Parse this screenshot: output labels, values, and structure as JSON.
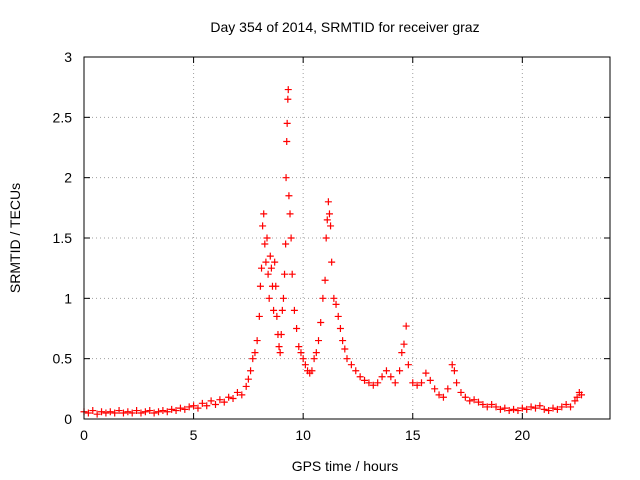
{
  "chart_data": {
    "type": "scatter",
    "title": "Day 354 of 2014, SRMTID for receiver graz",
    "xlabel": "GPS time / hours",
    "ylabel": "SRMTID / TECUs",
    "xlim": [
      0,
      24
    ],
    "ylim": [
      0,
      3
    ],
    "xticks": [
      0,
      5,
      10,
      15,
      20
    ],
    "yticks": [
      0,
      0.5,
      1,
      1.5,
      2,
      2.5,
      3
    ],
    "ytick_labels": [
      "0",
      "0.5",
      "1",
      "1.5",
      "2",
      "2.5",
      "3"
    ],
    "grid": true,
    "marker": "+",
    "series": [
      {
        "name": "SRMTID",
        "color": "#ff0000",
        "points": [
          [
            0.0,
            0.06
          ],
          [
            0.2,
            0.05
          ],
          [
            0.4,
            0.07
          ],
          [
            0.6,
            0.04
          ],
          [
            0.8,
            0.06
          ],
          [
            1.0,
            0.05
          ],
          [
            1.2,
            0.06
          ],
          [
            1.4,
            0.05
          ],
          [
            1.6,
            0.07
          ],
          [
            1.8,
            0.05
          ],
          [
            2.0,
            0.06
          ],
          [
            2.2,
            0.05
          ],
          [
            2.4,
            0.07
          ],
          [
            2.6,
            0.05
          ],
          [
            2.8,
            0.06
          ],
          [
            3.0,
            0.07
          ],
          [
            3.2,
            0.05
          ],
          [
            3.4,
            0.06
          ],
          [
            3.6,
            0.07
          ],
          [
            3.8,
            0.06
          ],
          [
            4.0,
            0.08
          ],
          [
            4.2,
            0.07
          ],
          [
            4.4,
            0.09
          ],
          [
            4.6,
            0.08
          ],
          [
            4.8,
            0.1
          ],
          [
            5.0,
            0.11
          ],
          [
            5.2,
            0.09
          ],
          [
            5.4,
            0.13
          ],
          [
            5.6,
            0.11
          ],
          [
            5.8,
            0.15
          ],
          [
            6.0,
            0.12
          ],
          [
            6.2,
            0.16
          ],
          [
            6.4,
            0.14
          ],
          [
            6.6,
            0.18
          ],
          [
            6.8,
            0.17
          ],
          [
            7.0,
            0.22
          ],
          [
            7.2,
            0.2
          ],
          [
            7.4,
            0.27
          ],
          [
            7.5,
            0.33
          ],
          [
            7.6,
            0.4
          ],
          [
            7.7,
            0.5
          ],
          [
            7.8,
            0.55
          ],
          [
            7.9,
            0.65
          ],
          [
            8.0,
            0.85
          ],
          [
            8.05,
            1.1
          ],
          [
            8.1,
            1.25
          ],
          [
            8.15,
            1.6
          ],
          [
            8.2,
            1.7
          ],
          [
            8.25,
            1.45
          ],
          [
            8.3,
            1.3
          ],
          [
            8.35,
            1.5
          ],
          [
            8.4,
            1.2
          ],
          [
            8.45,
            1.0
          ],
          [
            8.5,
            1.35
          ],
          [
            8.55,
            1.25
          ],
          [
            8.6,
            1.1
          ],
          [
            8.65,
            0.9
          ],
          [
            8.7,
            1.3
          ],
          [
            8.75,
            1.1
          ],
          [
            8.8,
            0.85
          ],
          [
            8.85,
            0.7
          ],
          [
            8.9,
            0.6
          ],
          [
            8.95,
            0.55
          ],
          [
            9.0,
            0.7
          ],
          [
            9.05,
            0.9
          ],
          [
            9.1,
            1.0
          ],
          [
            9.15,
            1.2
          ],
          [
            9.2,
            1.45
          ],
          [
            9.22,
            2.0
          ],
          [
            9.25,
            2.3
          ],
          [
            9.27,
            2.45
          ],
          [
            9.3,
            2.65
          ],
          [
            9.32,
            2.73
          ],
          [
            9.35,
            1.85
          ],
          [
            9.4,
            1.7
          ],
          [
            9.45,
            1.5
          ],
          [
            9.5,
            1.2
          ],
          [
            9.6,
            0.9
          ],
          [
            9.7,
            0.75
          ],
          [
            9.8,
            0.6
          ],
          [
            9.9,
            0.55
          ],
          [
            10.0,
            0.5
          ],
          [
            10.1,
            0.45
          ],
          [
            10.2,
            0.4
          ],
          [
            10.3,
            0.38
          ],
          [
            10.4,
            0.4
          ],
          [
            10.5,
            0.5
          ],
          [
            10.6,
            0.55
          ],
          [
            10.7,
            0.65
          ],
          [
            10.8,
            0.8
          ],
          [
            10.9,
            1.0
          ],
          [
            11.0,
            1.15
          ],
          [
            11.05,
            1.5
          ],
          [
            11.1,
            1.65
          ],
          [
            11.15,
            1.8
          ],
          [
            11.2,
            1.7
          ],
          [
            11.25,
            1.6
          ],
          [
            11.3,
            1.3
          ],
          [
            11.4,
            1.0
          ],
          [
            11.5,
            0.95
          ],
          [
            11.6,
            0.85
          ],
          [
            11.7,
            0.75
          ],
          [
            11.8,
            0.65
          ],
          [
            11.9,
            0.58
          ],
          [
            12.0,
            0.5
          ],
          [
            12.2,
            0.45
          ],
          [
            12.4,
            0.4
          ],
          [
            12.6,
            0.35
          ],
          [
            12.8,
            0.32
          ],
          [
            13.0,
            0.3
          ],
          [
            13.2,
            0.28
          ],
          [
            13.4,
            0.3
          ],
          [
            13.6,
            0.35
          ],
          [
            13.8,
            0.4
          ],
          [
            14.0,
            0.35
          ],
          [
            14.2,
            0.3
          ],
          [
            14.4,
            0.4
          ],
          [
            14.5,
            0.55
          ],
          [
            14.6,
            0.62
          ],
          [
            14.7,
            0.77
          ],
          [
            14.8,
            0.45
          ],
          [
            15.0,
            0.3
          ],
          [
            15.2,
            0.28
          ],
          [
            15.4,
            0.3
          ],
          [
            15.6,
            0.38
          ],
          [
            15.8,
            0.32
          ],
          [
            16.0,
            0.25
          ],
          [
            16.2,
            0.2
          ],
          [
            16.4,
            0.18
          ],
          [
            16.6,
            0.25
          ],
          [
            16.8,
            0.45
          ],
          [
            16.9,
            0.4
          ],
          [
            17.0,
            0.3
          ],
          [
            17.2,
            0.22
          ],
          [
            17.4,
            0.18
          ],
          [
            17.6,
            0.15
          ],
          [
            17.8,
            0.16
          ],
          [
            18.0,
            0.14
          ],
          [
            18.2,
            0.12
          ],
          [
            18.4,
            0.1
          ],
          [
            18.6,
            0.12
          ],
          [
            18.8,
            0.1
          ],
          [
            19.0,
            0.08
          ],
          [
            19.2,
            0.09
          ],
          [
            19.4,
            0.07
          ],
          [
            19.6,
            0.08
          ],
          [
            19.8,
            0.07
          ],
          [
            20.0,
            0.09
          ],
          [
            20.2,
            0.08
          ],
          [
            20.4,
            0.1
          ],
          [
            20.6,
            0.09
          ],
          [
            20.8,
            0.11
          ],
          [
            21.0,
            0.08
          ],
          [
            21.2,
            0.07
          ],
          [
            21.4,
            0.09
          ],
          [
            21.6,
            0.08
          ],
          [
            21.8,
            0.1
          ],
          [
            22.0,
            0.12
          ],
          [
            22.2,
            0.1
          ],
          [
            22.4,
            0.15
          ],
          [
            22.5,
            0.18
          ],
          [
            22.6,
            0.22
          ],
          [
            22.7,
            0.2
          ]
        ]
      }
    ]
  }
}
